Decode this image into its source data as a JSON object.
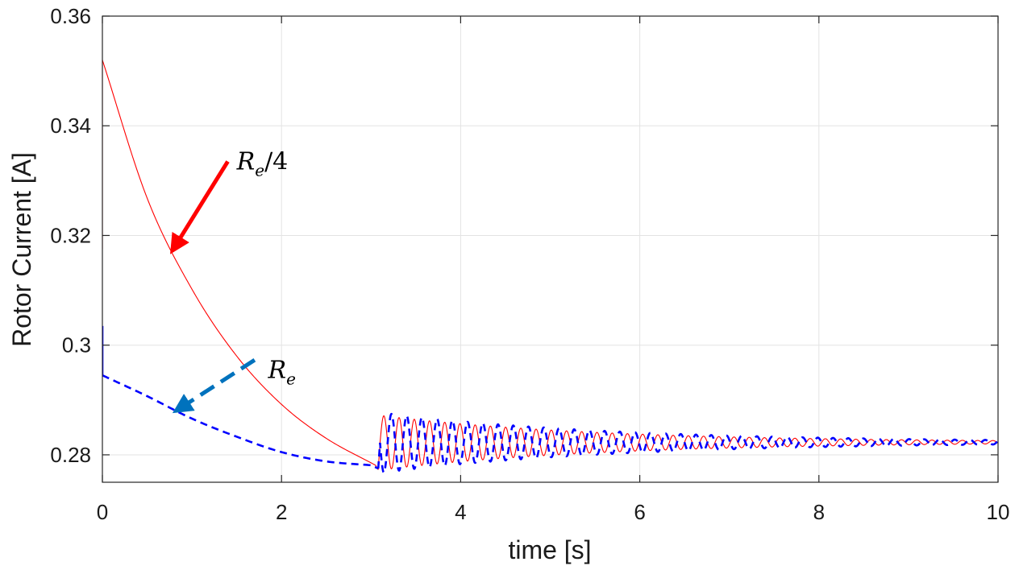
{
  "chart_data": {
    "type": "line",
    "title": "",
    "xlabel": "time [s]",
    "ylabel": "Rotor Current [A]",
    "xlim": [
      0,
      10
    ],
    "ylim": [
      0.275,
      0.36
    ],
    "xticks": [
      0,
      2,
      4,
      6,
      8,
      10
    ],
    "xtick_labels": [
      "0",
      "2",
      "4",
      "6",
      "8",
      "10"
    ],
    "yticks": [
      0.28,
      0.3,
      0.32,
      0.34,
      0.36
    ],
    "ytick_labels": [
      "0.28",
      "0.3",
      "0.32",
      "0.34",
      "0.36"
    ],
    "grid": true,
    "legend": "none",
    "series": [
      {
        "label_base": "R",
        "label_sub": "e",
        "label_suffix": "/4",
        "color": "#ff0000",
        "style": "solid",
        "initial_spike": [
          [
            0,
            0.3175
          ],
          [
            0,
            0.352
          ]
        ],
        "decay_points": [
          [
            0,
            0.352
          ],
          [
            0.5,
            0.3268
          ],
          [
            1.0,
            0.3102
          ],
          [
            1.5,
            0.298
          ],
          [
            2.0,
            0.2892
          ],
          [
            2.5,
            0.283
          ],
          [
            3.05,
            0.2781
          ]
        ],
        "step_to": [
          3.08,
          0.2773
        ],
        "oscillation": {
          "start": 3.1,
          "end": 10.0,
          "center_start": 0.2822,
          "center_end": 0.2823,
          "amp_start": 0.005,
          "amp_end": 0.0003,
          "period": 0.17,
          "phase": 0
        }
      },
      {
        "label_base": "R",
        "label_sub": "e",
        "label_suffix": "",
        "color": "#0000ff",
        "style": "dashed",
        "initial_spike": [
          [
            0,
            0.2945
          ],
          [
            0,
            0.3035
          ]
        ],
        "decay_points": [
          [
            0,
            0.2945
          ],
          [
            0.5,
            0.2907
          ],
          [
            1.0,
            0.2866
          ],
          [
            1.5,
            0.2833
          ],
          [
            2.0,
            0.2805
          ],
          [
            2.5,
            0.2788
          ],
          [
            3.0,
            0.2781
          ]
        ],
        "step_to": [
          3.08,
          0.2775
        ],
        "oscillation": {
          "start": 3.1,
          "end": 10.0,
          "center_start": 0.2822,
          "center_end": 0.2823,
          "amp_start": 0.0055,
          "amp_end": 0.0004,
          "period": 0.17,
          "phase": 3.14159
        }
      }
    ],
    "annotations": [
      {
        "series": 0,
        "arrow_color": "#ff0000",
        "arrow_style": "solid",
        "tail": [
          1.4,
          0.3335
        ],
        "head": [
          0.78,
          0.3172
        ],
        "text_at": [
          1.5,
          0.3335
        ]
      },
      {
        "series": 1,
        "arrow_color": "#0072bd",
        "arrow_style": "dashed",
        "tail": [
          1.7,
          0.2973
        ],
        "head": [
          0.82,
          0.288
        ],
        "text_at": [
          1.85,
          0.2955
        ]
      }
    ]
  }
}
